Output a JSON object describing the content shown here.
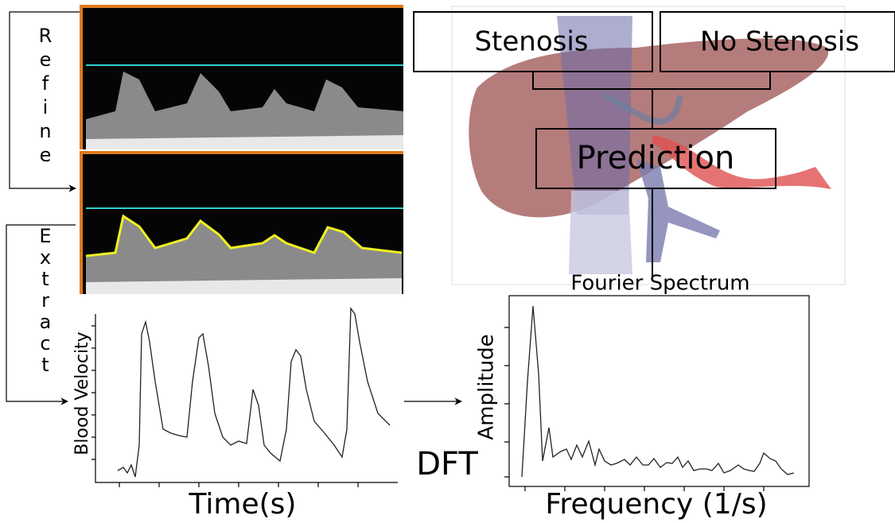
{
  "steps": {
    "refine": "Refine",
    "extract": "Extract"
  },
  "prediction": {
    "stenosis": "Stenosis",
    "no_stenosis": "No Stenosis",
    "prediction": "Prediction",
    "fourier_spectrum": "Fourier Spectrum"
  },
  "velocity_plot": {
    "y_label": "Blood Velocity",
    "x_label": "Time(s)"
  },
  "dft": {
    "label": "DFT"
  },
  "spectrum_plot": {
    "y_label": "Amplitude",
    "x_label": "Frequency (1/s)"
  }
}
